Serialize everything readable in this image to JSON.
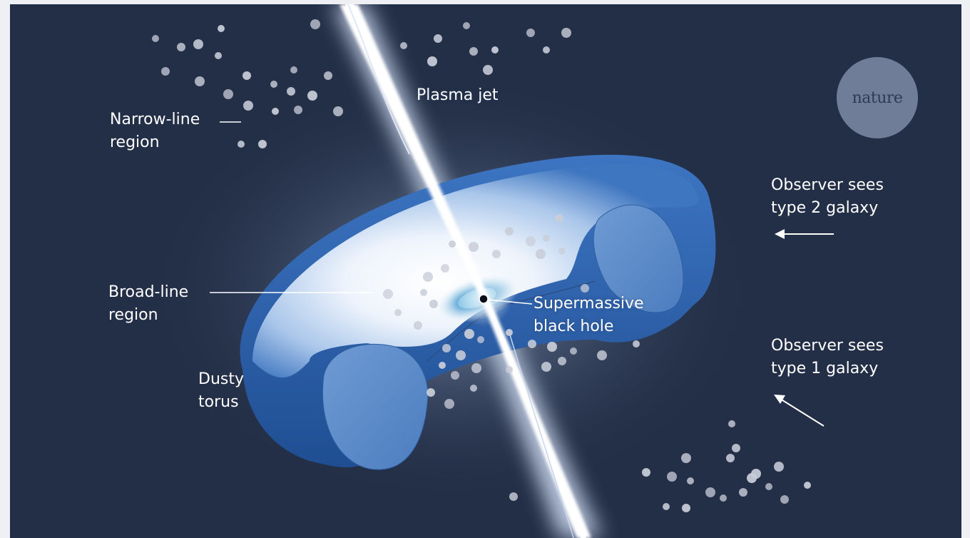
{
  "labels": {
    "narrow_line_region": [
      "Narrow-line",
      "region"
    ],
    "plasma_jet": "Plasma jet",
    "broad_line_region": [
      "Broad-line",
      "region"
    ],
    "dusty_torus": [
      "Dusty",
      "torus"
    ],
    "supermassive_black_hole": [
      "Supermassive",
      "black hole"
    ],
    "observer_type2": [
      "Observer sees",
      "type 2 galaxy"
    ],
    "observer_type1": [
      "Observer sees",
      "type 1 galaxy"
    ]
  },
  "logo": {
    "text": "nature"
  },
  "colors": {
    "background": "#232f47",
    "torus_outer": "#2f63ad",
    "torus_inner": "#5d8cc8",
    "jet": "#ffffff",
    "clouds": "#c9ced9"
  }
}
